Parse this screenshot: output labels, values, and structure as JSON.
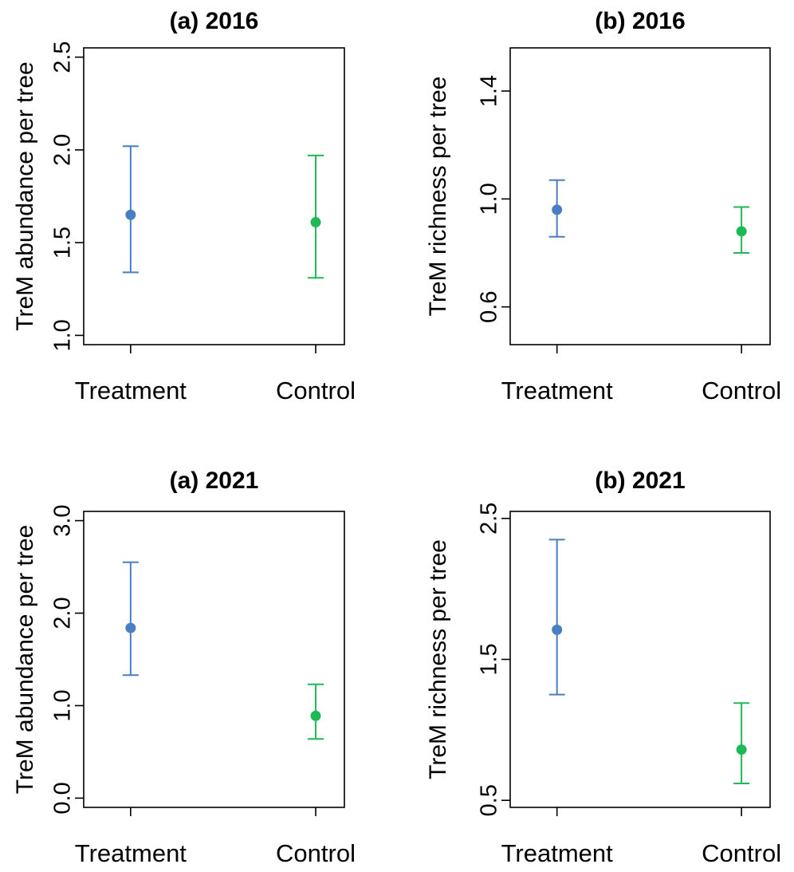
{
  "colors": {
    "treatment": "#4a7ec4",
    "control": "#1db954"
  },
  "chart_data": [
    {
      "type": "scatter",
      "title": "(a) 2016",
      "ylabel": "TreM abundance per tree",
      "categories": [
        "Treatment",
        "Control"
      ],
      "ylim": [
        0.95,
        2.55
      ],
      "yticks": [
        "1.0",
        "1.5",
        "2.0",
        "2.5"
      ],
      "points": [
        {
          "category": "Treatment",
          "mean": 1.65,
          "lower": 1.34,
          "upper": 2.02
        },
        {
          "category": "Control",
          "mean": 1.61,
          "lower": 1.31,
          "upper": 1.97
        }
      ]
    },
    {
      "type": "scatter",
      "title": "(b) 2016",
      "ylabel": "TreM richness per tree",
      "categories": [
        "Treatment",
        "Control"
      ],
      "ylim": [
        0.46,
        1.56
      ],
      "yticks": [
        "0.6",
        "1.0",
        "1.4"
      ],
      "points": [
        {
          "category": "Treatment",
          "mean": 0.96,
          "lower": 0.86,
          "upper": 1.07
        },
        {
          "category": "Control",
          "mean": 0.88,
          "lower": 0.8,
          "upper": 0.97
        }
      ]
    },
    {
      "type": "scatter",
      "title": "(a) 2021",
      "ylabel": "TreM abundance per tree",
      "categories": [
        "Treatment",
        "Control"
      ],
      "ylim": [
        -0.1,
        3.1
      ],
      "yticks": [
        "0.0",
        "1.0",
        "2.0",
        "3.0"
      ],
      "points": [
        {
          "category": "Treatment",
          "mean": 1.84,
          "lower": 1.33,
          "upper": 2.55
        },
        {
          "category": "Control",
          "mean": 0.89,
          "lower": 0.64,
          "upper": 1.23
        }
      ]
    },
    {
      "type": "scatter",
      "title": "(b) 2021",
      "ylabel": "TreM richness per tree",
      "categories": [
        "Treatment",
        "Control"
      ],
      "ylim": [
        0.45,
        2.55
      ],
      "yticks": [
        "0.5",
        "1.5",
        "2.5"
      ],
      "points": [
        {
          "category": "Treatment",
          "mean": 1.71,
          "lower": 1.25,
          "upper": 2.35
        },
        {
          "category": "Control",
          "mean": 0.86,
          "lower": 0.62,
          "upper": 1.19
        }
      ]
    }
  ]
}
